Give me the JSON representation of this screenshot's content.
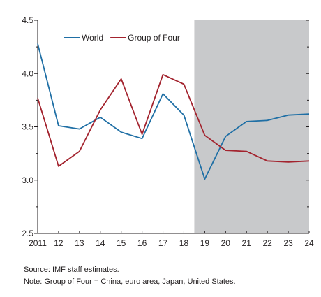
{
  "chart_data": {
    "type": "line",
    "title": "",
    "xlabel": "",
    "ylabel": "",
    "x": [
      "2011",
      "12",
      "13",
      "14",
      "15",
      "16",
      "17",
      "18",
      "19",
      "20",
      "21",
      "22",
      "23",
      "24"
    ],
    "ylim": [
      2.5,
      4.5
    ],
    "yticks": [
      "2.5",
      "3.0",
      "3.5",
      "4.0",
      "4.5"
    ],
    "shaded_x_range": [
      "18.5",
      "24"
    ],
    "shade_color": "#c8c9cb",
    "legend_position": "top-left",
    "grid": false,
    "series": [
      {
        "name": "World",
        "color": "#1f6fa5",
        "values": [
          4.28,
          3.51,
          3.48,
          3.59,
          3.45,
          3.39,
          3.81,
          3.61,
          3.01,
          3.41,
          3.55,
          3.56,
          3.61,
          3.62
        ]
      },
      {
        "name": "Group of Four",
        "color": "#a3232e",
        "values": [
          3.77,
          3.13,
          3.27,
          3.66,
          3.95,
          3.43,
          3.99,
          3.9,
          3.42,
          3.28,
          3.27,
          3.18,
          3.17,
          3.18
        ]
      }
    ]
  },
  "notes": {
    "source": "Source: IMF staff estimates.",
    "note": "Note: Group of Four = China, euro area, Japan, United States."
  }
}
